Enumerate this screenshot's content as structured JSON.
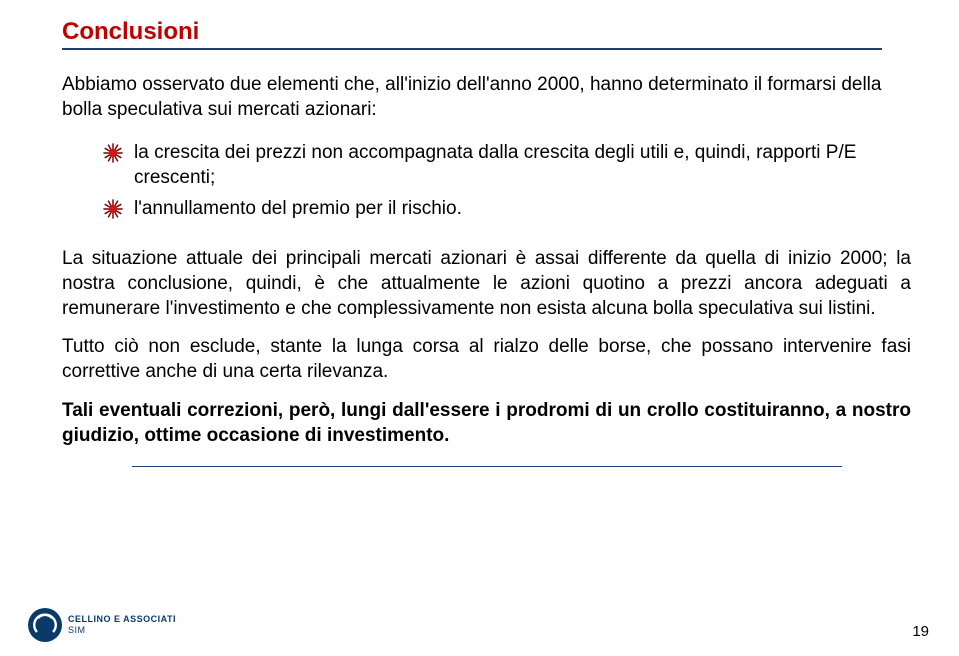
{
  "title": {
    "text": "Conclusioni",
    "color": "#c00000",
    "fontsize": 24,
    "underline_color": "#1f3f7a"
  },
  "intro": {
    "text": "Abbiamo osservato due elementi che, all'inizio dell'anno 2000, hanno determinato il formarsi della bolla speculativa sui mercati azionari:",
    "fontsize": 19
  },
  "bullets": {
    "icon_fill": "#d01818",
    "icon_stroke": "#7a0000",
    "items": [
      {
        "text": "la crescita dei prezzi non accompagnata dalla crescita degli utili e, quindi, rapporti P/E crescenti;"
      },
      {
        "text": "l'annullamento del premio per il rischio."
      }
    ],
    "fontsize": 19
  },
  "paragraphs": [
    {
      "text": "La situazione attuale dei principali mercati azionari è assai differente da quella di inizio 2000; la nostra conclusione, quindi, è che attualmente le azioni quotino a prezzi ancora adeguati a remunerare l'investimento e che complessivamente non esista alcuna bolla speculativa sui listini.",
      "bold": false
    },
    {
      "text": "Tutto ciò non esclude, stante la lunga corsa al rialzo delle borse, che possano intervenire fasi correttive anche di una certa rilevanza.",
      "bold": false
    },
    {
      "text": "Tali eventuali correzioni, però, lungi dall'essere i prodromi di un crollo costituiranno, a nostro giudizio, ottime occasione di investimento.",
      "bold": true
    }
  ],
  "body_fontsize": 19,
  "body_color": "#000000",
  "separator_color": "#1f3f7a",
  "logo": {
    "bg_color": "#0a3a6a",
    "arc_color": "#ffffff",
    "line1": "CELLINO E ASSOCIATI",
    "line2": "SIM",
    "text_color": "#0a3a6a",
    "fontsize": 9
  },
  "page_number": {
    "value": "19",
    "fontsize": 15,
    "color": "#000000"
  }
}
